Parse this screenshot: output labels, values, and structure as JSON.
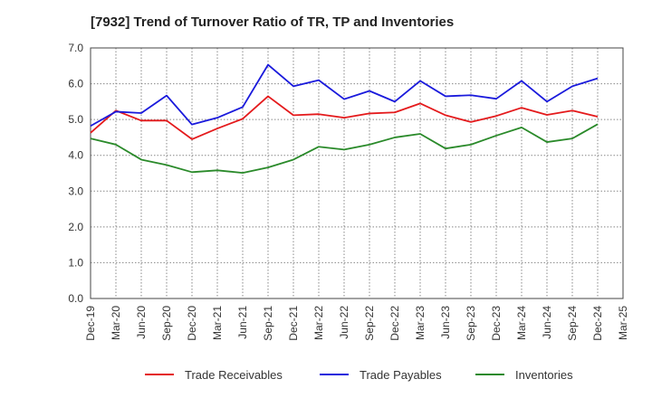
{
  "chart_data": {
    "type": "line",
    "title": "[7932]  Trend of Turnover Ratio of TR, TP and Inventories",
    "xlabel": "",
    "ylabel": "",
    "ylim": [
      0,
      7
    ],
    "yticks": [
      "0.0",
      "1.0",
      "2.0",
      "3.0",
      "4.0",
      "5.0",
      "6.0",
      "7.0"
    ],
    "x": [
      "Dec-19",
      "Mar-20",
      "Jun-20",
      "Sep-20",
      "Dec-20",
      "Mar-21",
      "Jun-21",
      "Sep-21",
      "Dec-21",
      "Mar-22",
      "Jun-22",
      "Sep-22",
      "Dec-22",
      "Mar-23",
      "Jun-23",
      "Sep-23",
      "Dec-23",
      "Mar-24",
      "Jun-24",
      "Sep-24",
      "Dec-24",
      "Mar-25"
    ],
    "grid": true,
    "legend_position": "bottom",
    "series": [
      {
        "name": "Trade Receivables",
        "color": "#e41a1c",
        "values": [
          4.63,
          5.25,
          4.97,
          4.97,
          4.45,
          4.75,
          5.02,
          5.65,
          5.12,
          5.15,
          5.05,
          5.17,
          5.2,
          5.45,
          5.12,
          4.93,
          5.1,
          5.33,
          5.13,
          5.25,
          5.08,
          null
        ]
      },
      {
        "name": "Trade Payables",
        "color": "#1a1adc",
        "values": [
          4.82,
          5.22,
          5.18,
          5.67,
          4.86,
          5.05,
          5.35,
          6.53,
          5.93,
          6.1,
          5.57,
          5.8,
          5.5,
          6.08,
          5.65,
          5.68,
          5.58,
          6.08,
          5.5,
          5.93,
          6.15,
          null
        ]
      },
      {
        "name": "Inventories",
        "color": "#2a8a2a",
        "values": [
          4.47,
          4.3,
          3.88,
          3.73,
          3.53,
          3.58,
          3.51,
          3.66,
          3.88,
          4.24,
          4.16,
          4.3,
          4.5,
          4.6,
          4.19,
          4.3,
          4.55,
          4.78,
          4.37,
          4.47,
          4.87,
          null
        ]
      }
    ]
  }
}
